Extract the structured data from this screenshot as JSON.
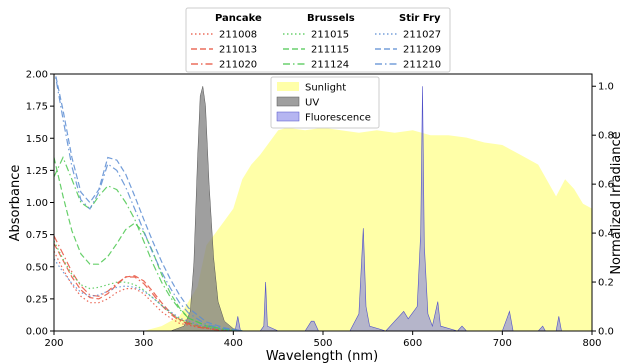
{
  "chart_data": {
    "type": "area",
    "xlabel": "Wavelength (nm)",
    "ylabel_left": "Absorbance",
    "ylabel_right": "Normalized Irradiance",
    "xlim": [
      200,
      800
    ],
    "ylim_left": [
      0,
      2.0
    ],
    "ylim_right": [
      0,
      1.05
    ],
    "x_ticks": [
      200,
      300,
      400,
      500,
      600,
      700,
      800
    ],
    "y_left_ticks": [
      "0.00",
      "0.25",
      "0.50",
      "0.75",
      "1.00",
      "1.25",
      "1.50",
      "1.75",
      "2.00"
    ],
    "y_right_ticks": [
      "0.0",
      "0.2",
      "0.4",
      "0.6",
      "0.8",
      "1.0"
    ],
    "colors": {
      "pancake": "#e8503c",
      "brussels": "#4cc850",
      "stirfry": "#5a8cd2",
      "sunlight": "#ffff99",
      "uv": "#7f7f7f",
      "fluorescence": "#7878e6"
    },
    "irradiance_legend": [
      "Sunlight",
      "UV",
      "Fluorescence"
    ],
    "absorbance_legend": {
      "groups": [
        "Pancake",
        "Brussels",
        "Stir Fry"
      ],
      "entries": [
        [
          "211008",
          "211013",
          "211020"
        ],
        [
          "211015",
          "211115",
          "211124"
        ],
        [
          "211027",
          "211209",
          "211210"
        ]
      ]
    },
    "absorbance_series": [
      {
        "name": "211008",
        "group": "pancake",
        "style": "dotted",
        "points": [
          [
            200,
            0.62
          ],
          [
            210,
            0.48
          ],
          [
            220,
            0.36
          ],
          [
            230,
            0.27
          ],
          [
            240,
            0.22
          ],
          [
            250,
            0.22
          ],
          [
            260,
            0.25
          ],
          [
            270,
            0.3
          ],
          [
            280,
            0.33
          ],
          [
            290,
            0.33
          ],
          [
            300,
            0.29
          ],
          [
            310,
            0.22
          ],
          [
            320,
            0.15
          ],
          [
            330,
            0.1
          ],
          [
            340,
            0.06
          ],
          [
            360,
            0.03
          ],
          [
            380,
            0.01
          ],
          [
            400,
            0.0
          ]
        ]
      },
      {
        "name": "211013",
        "group": "pancake",
        "style": "dashed",
        "points": [
          [
            200,
            0.68
          ],
          [
            210,
            0.55
          ],
          [
            220,
            0.42
          ],
          [
            230,
            0.32
          ],
          [
            240,
            0.26
          ],
          [
            250,
            0.25
          ],
          [
            260,
            0.29
          ],
          [
            270,
            0.36
          ],
          [
            280,
            0.42
          ],
          [
            290,
            0.43
          ],
          [
            300,
            0.39
          ],
          [
            310,
            0.31
          ],
          [
            320,
            0.22
          ],
          [
            330,
            0.14
          ],
          [
            340,
            0.09
          ],
          [
            360,
            0.04
          ],
          [
            380,
            0.015
          ],
          [
            400,
            0.0
          ]
        ]
      },
      {
        "name": "211020",
        "group": "pancake",
        "style": "dashdot",
        "points": [
          [
            200,
            0.74
          ],
          [
            210,
            0.6
          ],
          [
            220,
            0.46
          ],
          [
            230,
            0.35
          ],
          [
            240,
            0.28
          ],
          [
            250,
            0.27
          ],
          [
            260,
            0.31
          ],
          [
            270,
            0.37
          ],
          [
            280,
            0.42
          ],
          [
            290,
            0.42
          ],
          [
            300,
            0.37
          ],
          [
            310,
            0.29
          ],
          [
            320,
            0.2
          ],
          [
            330,
            0.13
          ],
          [
            340,
            0.08
          ],
          [
            360,
            0.03
          ],
          [
            380,
            0.01
          ],
          [
            400,
            0.0
          ]
        ]
      },
      {
        "name": "211015",
        "group": "brussels",
        "style": "dotted",
        "points": [
          [
            200,
            0.7
          ],
          [
            210,
            0.56
          ],
          [
            220,
            0.44
          ],
          [
            230,
            0.36
          ],
          [
            240,
            0.33
          ],
          [
            250,
            0.34
          ],
          [
            260,
            0.36
          ],
          [
            270,
            0.38
          ],
          [
            280,
            0.38
          ],
          [
            290,
            0.36
          ],
          [
            300,
            0.32
          ],
          [
            310,
            0.26
          ],
          [
            320,
            0.2
          ],
          [
            330,
            0.14
          ],
          [
            340,
            0.09
          ],
          [
            360,
            0.04
          ],
          [
            380,
            0.015
          ],
          [
            400,
            0.0
          ]
        ]
      },
      {
        "name": "211115",
        "group": "brussels",
        "style": "dashed",
        "points": [
          [
            200,
            1.35
          ],
          [
            210,
            1.05
          ],
          [
            220,
            0.78
          ],
          [
            230,
            0.6
          ],
          [
            240,
            0.52
          ],
          [
            250,
            0.52
          ],
          [
            260,
            0.58
          ],
          [
            270,
            0.68
          ],
          [
            280,
            0.79
          ],
          [
            290,
            0.84
          ],
          [
            300,
            0.77
          ],
          [
            310,
            0.62
          ],
          [
            320,
            0.44
          ],
          [
            330,
            0.29
          ],
          [
            340,
            0.18
          ],
          [
            350,
            0.1
          ],
          [
            370,
            0.04
          ],
          [
            390,
            0.015
          ],
          [
            410,
            0.0
          ]
        ]
      },
      {
        "name": "211124",
        "group": "brussels",
        "style": "dashdot",
        "points": [
          [
            200,
            1.2
          ],
          [
            210,
            1.35
          ],
          [
            220,
            1.18
          ],
          [
            230,
            1.0
          ],
          [
            240,
            0.95
          ],
          [
            250,
            1.05
          ],
          [
            260,
            1.13
          ],
          [
            270,
            1.1
          ],
          [
            280,
            1.0
          ],
          [
            290,
            0.87
          ],
          [
            300,
            0.7
          ],
          [
            310,
            0.53
          ],
          [
            320,
            0.38
          ],
          [
            330,
            0.26
          ],
          [
            340,
            0.17
          ],
          [
            350,
            0.1
          ],
          [
            370,
            0.04
          ],
          [
            390,
            0.015
          ],
          [
            410,
            0.0
          ]
        ]
      },
      {
        "name": "211027",
        "group": "stirfry",
        "style": "dotted",
        "points": [
          [
            200,
            0.56
          ],
          [
            210,
            0.46
          ],
          [
            220,
            0.37
          ],
          [
            230,
            0.3
          ],
          [
            240,
            0.27
          ],
          [
            250,
            0.28
          ],
          [
            260,
            0.31
          ],
          [
            270,
            0.34
          ],
          [
            280,
            0.35
          ],
          [
            290,
            0.34
          ],
          [
            300,
            0.31
          ],
          [
            310,
            0.26
          ],
          [
            320,
            0.2
          ],
          [
            330,
            0.15
          ],
          [
            340,
            0.1
          ],
          [
            360,
            0.05
          ],
          [
            380,
            0.02
          ],
          [
            400,
            0.0
          ]
        ]
      },
      {
        "name": "211209",
        "group": "stirfry",
        "style": "dashed",
        "points": [
          [
            200,
            2.05
          ],
          [
            210,
            1.72
          ],
          [
            220,
            1.35
          ],
          [
            230,
            1.08
          ],
          [
            240,
            1.0
          ],
          [
            250,
            1.1
          ],
          [
            260,
            1.35
          ],
          [
            270,
            1.33
          ],
          [
            280,
            1.22
          ],
          [
            290,
            1.05
          ],
          [
            300,
            0.87
          ],
          [
            310,
            0.7
          ],
          [
            320,
            0.54
          ],
          [
            330,
            0.4
          ],
          [
            340,
            0.28
          ],
          [
            350,
            0.18
          ],
          [
            370,
            0.07
          ],
          [
            390,
            0.025
          ],
          [
            410,
            0.0
          ]
        ]
      },
      {
        "name": "211210",
        "group": "stirfry",
        "style": "dashdot",
        "points": [
          [
            200,
            2.05
          ],
          [
            210,
            1.65
          ],
          [
            220,
            1.28
          ],
          [
            230,
            1.02
          ],
          [
            240,
            0.95
          ],
          [
            250,
            1.08
          ],
          [
            260,
            1.3
          ],
          [
            270,
            1.25
          ],
          [
            280,
            1.12
          ],
          [
            290,
            0.95
          ],
          [
            300,
            0.78
          ],
          [
            310,
            0.61
          ],
          [
            320,
            0.46
          ],
          [
            330,
            0.33
          ],
          [
            340,
            0.22
          ],
          [
            350,
            0.14
          ],
          [
            370,
            0.05
          ],
          [
            390,
            0.02
          ],
          [
            410,
            0.0
          ]
        ]
      }
    ],
    "sunlight": {
      "name": "Sunlight",
      "points": [
        [
          300,
          0.0
        ],
        [
          320,
          0.02
        ],
        [
          340,
          0.06
        ],
        [
          360,
          0.18
        ],
        [
          370,
          0.35
        ],
        [
          380,
          0.4
        ],
        [
          390,
          0.45
        ],
        [
          400,
          0.5
        ],
        [
          410,
          0.62
        ],
        [
          420,
          0.68
        ],
        [
          430,
          0.72
        ],
        [
          440,
          0.77
        ],
        [
          450,
          0.82
        ],
        [
          460,
          0.83
        ],
        [
          480,
          0.82
        ],
        [
          500,
          0.83
        ],
        [
          520,
          0.82
        ],
        [
          540,
          0.81
        ],
        [
          560,
          0.82
        ],
        [
          580,
          0.81
        ],
        [
          600,
          0.82
        ],
        [
          620,
          0.8
        ],
        [
          640,
          0.8
        ],
        [
          660,
          0.79
        ],
        [
          680,
          0.77
        ],
        [
          700,
          0.76
        ],
        [
          720,
          0.72
        ],
        [
          740,
          0.68
        ],
        [
          760,
          0.55
        ],
        [
          770,
          0.62
        ],
        [
          780,
          0.58
        ],
        [
          790,
          0.52
        ],
        [
          800,
          0.5
        ]
      ]
    },
    "uv": {
      "name": "UV",
      "points": [
        [
          330,
          0.0
        ],
        [
          345,
          0.02
        ],
        [
          352,
          0.08
        ],
        [
          356,
          0.28
        ],
        [
          360,
          0.7
        ],
        [
          363,
          0.96
        ],
        [
          366,
          1.0
        ],
        [
          369,
          0.92
        ],
        [
          373,
          0.6
        ],
        [
          378,
          0.3
        ],
        [
          383,
          0.12
        ],
        [
          390,
          0.04
        ],
        [
          400,
          0.01
        ],
        [
          410,
          0.0
        ]
      ]
    },
    "fluorescence": {
      "name": "Fluorescence",
      "points": [
        [
          360,
          0.0
        ],
        [
          402,
          0.0
        ],
        [
          405,
          0.06
        ],
        [
          408,
          0.0
        ],
        [
          430,
          0.0
        ],
        [
          434,
          0.02
        ],
        [
          436,
          0.2
        ],
        [
          438,
          0.02
        ],
        [
          450,
          0.0
        ],
        [
          480,
          0.0
        ],
        [
          487,
          0.04
        ],
        [
          490,
          0.04
        ],
        [
          495,
          0.0
        ],
        [
          530,
          0.0
        ],
        [
          540,
          0.07
        ],
        [
          545,
          0.42
        ],
        [
          548,
          0.1
        ],
        [
          552,
          0.02
        ],
        [
          570,
          0.0
        ],
        [
          580,
          0.04
        ],
        [
          585,
          0.06
        ],
        [
          590,
          0.08
        ],
        [
          595,
          0.05
        ],
        [
          605,
          0.1
        ],
        [
          609,
          0.4
        ],
        [
          611,
          1.0
        ],
        [
          613,
          0.35
        ],
        [
          617,
          0.07
        ],
        [
          622,
          0.02
        ],
        [
          628,
          0.12
        ],
        [
          631,
          0.02
        ],
        [
          650,
          0.0
        ],
        [
          655,
          0.02
        ],
        [
          660,
          0.0
        ],
        [
          700,
          0.0
        ],
        [
          705,
          0.05
        ],
        [
          708,
          0.08
        ],
        [
          712,
          0.0
        ],
        [
          740,
          0.0
        ],
        [
          745,
          0.02
        ],
        [
          748,
          0.0
        ],
        [
          760,
          0.0
        ],
        [
          763,
          0.06
        ],
        [
          766,
          0.0
        ],
        [
          800,
          0.0
        ]
      ]
    }
  }
}
